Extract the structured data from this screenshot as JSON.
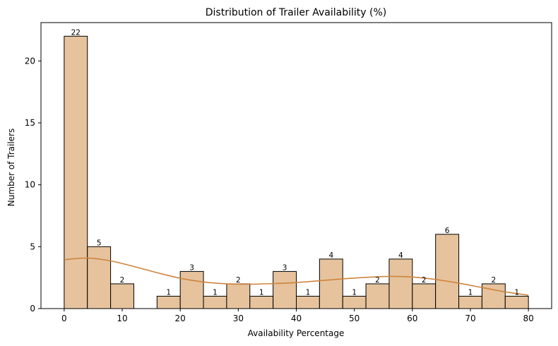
{
  "chart_data": {
    "type": "bar",
    "title": "Distribution of Trailer Availability (%)",
    "xlabel": "Availability Percentage",
    "ylabel": "Number of Trailers",
    "xlim": [
      -4,
      84
    ],
    "ylim": [
      0,
      23.1
    ],
    "xticks": [
      0,
      10,
      20,
      30,
      40,
      50,
      60,
      70,
      80
    ],
    "yticks": [
      0,
      5,
      10,
      15,
      20
    ],
    "bin_edges": [
      0,
      4,
      8,
      12,
      16,
      20,
      24,
      28,
      32,
      36,
      40,
      44,
      48,
      52,
      56,
      60,
      64,
      68,
      72,
      76,
      80
    ],
    "counts": [
      22,
      5,
      2,
      0,
      1,
      3,
      1,
      2,
      1,
      3,
      1,
      4,
      1,
      2,
      4,
      2,
      6,
      1,
      2,
      1
    ],
    "kde": {
      "x": [
        0,
        4,
        8,
        12,
        16,
        20,
        24,
        28,
        32,
        36,
        40,
        44,
        48,
        52,
        56,
        60,
        64,
        68,
        72,
        76,
        80
      ],
      "y": [
        3.95,
        4.08,
        3.85,
        3.4,
        2.9,
        2.45,
        2.15,
        2.0,
        1.97,
        2.02,
        2.1,
        2.25,
        2.4,
        2.52,
        2.6,
        2.55,
        2.35,
        2.05,
        1.7,
        1.35,
        1.08
      ]
    },
    "bar_color": "#e6c39d",
    "edge_color": "#000000",
    "kde_color": "#cd853f",
    "grid": false,
    "legend": "none"
  }
}
